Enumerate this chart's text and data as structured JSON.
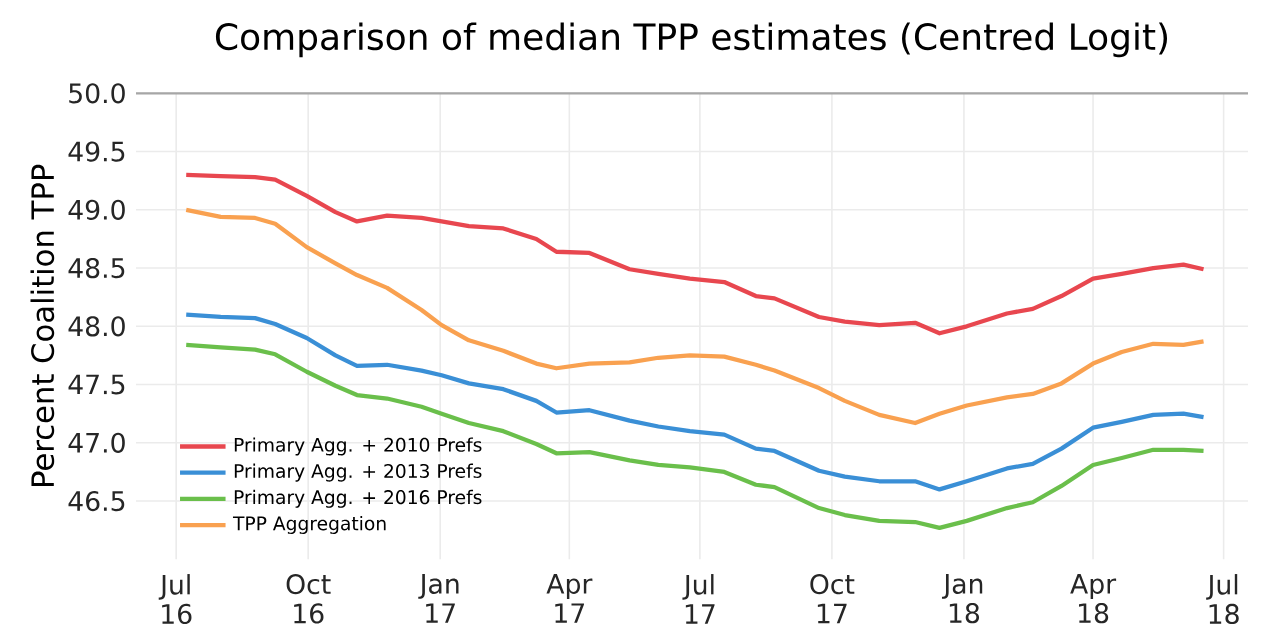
{
  "chart_data": {
    "type": "line",
    "title": "Comparison of median TPP estimates (Centred Logit)",
    "ylabel": "Percent Coalition TPP",
    "x": [
      "2016-07-08",
      "2016-08-01",
      "2016-08-25",
      "2016-09-08",
      "2016-09-30",
      "2016-10-20",
      "2016-11-04",
      "2016-11-25",
      "2016-12-19",
      "2017-01-02",
      "2017-01-21",
      "2017-02-14",
      "2017-03-09",
      "2017-03-23",
      "2017-04-15",
      "2017-05-13",
      "2017-06-02",
      "2017-06-24",
      "2017-07-18",
      "2017-08-09",
      "2017-08-22",
      "2017-09-22",
      "2017-10-10",
      "2017-11-03",
      "2017-11-28",
      "2017-12-15",
      "2018-01-03",
      "2018-01-31",
      "2018-02-18",
      "2018-03-10",
      "2018-04-01",
      "2018-04-21",
      "2018-05-13",
      "2018-06-03",
      "2018-06-17"
    ],
    "series": [
      {
        "name": "Primary Agg. + 2010 Prefs",
        "color": "#e8474f",
        "values": [
          49.3,
          49.29,
          49.28,
          49.26,
          49.12,
          48.98,
          48.9,
          48.95,
          48.93,
          48.9,
          48.86,
          48.84,
          48.75,
          48.64,
          48.63,
          48.49,
          48.45,
          48.41,
          48.38,
          48.26,
          48.24,
          48.08,
          48.04,
          48.01,
          48.03,
          47.94,
          48.0,
          48.11,
          48.15,
          48.26,
          48.41,
          48.45,
          48.5,
          48.53,
          48.49
        ]
      },
      {
        "name": "Primary Agg. + 2013 Prefs",
        "color": "#3a8fd6",
        "values": [
          48.1,
          48.08,
          48.07,
          48.02,
          47.9,
          47.75,
          47.66,
          47.67,
          47.62,
          47.58,
          47.51,
          47.46,
          47.36,
          47.26,
          47.28,
          47.19,
          47.14,
          47.1,
          47.07,
          46.95,
          46.93,
          46.76,
          46.71,
          46.67,
          46.67,
          46.6,
          46.67,
          46.78,
          46.82,
          46.95,
          47.13,
          47.18,
          47.24,
          47.25,
          47.22
        ]
      },
      {
        "name": "Primary Agg. + 2016 Prefs",
        "color": "#6abf4b",
        "values": [
          47.84,
          47.82,
          47.8,
          47.76,
          47.61,
          47.49,
          47.41,
          47.38,
          47.31,
          47.25,
          47.17,
          47.1,
          46.99,
          46.91,
          46.92,
          46.85,
          46.81,
          46.79,
          46.75,
          46.64,
          46.62,
          46.44,
          46.38,
          46.33,
          46.32,
          46.27,
          46.33,
          46.44,
          46.49,
          46.63,
          46.81,
          46.87,
          46.94,
          46.94,
          46.93
        ]
      },
      {
        "name": "TPP Aggregation",
        "color": "#f9a150",
        "values": [
          49.0,
          48.94,
          48.93,
          48.88,
          48.68,
          48.54,
          48.44,
          48.33,
          48.14,
          48.01,
          47.88,
          47.79,
          47.68,
          47.64,
          47.68,
          47.69,
          47.73,
          47.75,
          47.74,
          47.67,
          47.62,
          47.47,
          47.36,
          47.24,
          47.17,
          47.25,
          47.32,
          47.39,
          47.42,
          47.51,
          47.68,
          47.78,
          47.85,
          47.84,
          47.87
        ]
      }
    ],
    "xlim": [
      "2016-06-03",
      "2018-07-18"
    ],
    "xticks": [
      {
        "value": "2016-07-01",
        "label": "Jul 16"
      },
      {
        "value": "2016-10-01",
        "label": "Oct 16"
      },
      {
        "value": "2017-01-01",
        "label": "Jan 17"
      },
      {
        "value": "2017-04-01",
        "label": "Apr 17"
      },
      {
        "value": "2017-07-01",
        "label": "Jul 17"
      },
      {
        "value": "2017-10-01",
        "label": "Oct 17"
      },
      {
        "value": "2018-01-01",
        "label": "Jan 18"
      },
      {
        "value": "2018-04-01",
        "label": "Apr 18"
      },
      {
        "value": "2018-07-01",
        "label": "Jul 18"
      }
    ],
    "ylim": [
      46.0,
      50.0
    ],
    "yticks": [
      46.5,
      {
        "value": 47,
        "label": "47.0"
      },
      47.5,
      {
        "value": 48,
        "label": "48.0"
      },
      48.5,
      {
        "value": 49,
        "label": "49.0"
      },
      49.5,
      {
        "value": 50,
        "label": "50.0"
      }
    ],
    "grid": true,
    "legend": "bottom left",
    "marker": "none",
    "line_style": "solid"
  }
}
